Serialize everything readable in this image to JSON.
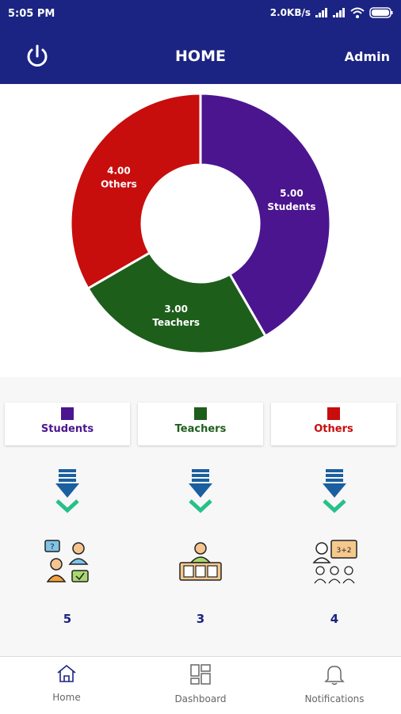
{
  "status_bar": {
    "time": "5:05 PM",
    "speed": "2.0KB/s"
  },
  "app_bar": {
    "title": "HOME",
    "user": "Admin"
  },
  "chart_data": {
    "type": "pie",
    "style": "donut",
    "slices": [
      {
        "value": "5.00",
        "label": "Students",
        "color": "#4b1590"
      },
      {
        "value": "3.00",
        "label": "Teachers",
        "color": "#1e5e1b"
      },
      {
        "value": "4.00",
        "label": "Others",
        "color": "#c80d0d"
      }
    ]
  },
  "categories": [
    {
      "label": "Students",
      "color": "#4b1590",
      "count": "5",
      "icon": "students-discussion-icon"
    },
    {
      "label": "Teachers",
      "color": "#1e5e1b",
      "count": "3",
      "icon": "teacher-desk-icon"
    },
    {
      "label": "Others",
      "color": "#c80d0d",
      "count": "4",
      "icon": "classroom-board-icon"
    }
  ],
  "bottom_nav": [
    {
      "label": "Home",
      "icon": "home-icon",
      "active": true
    },
    {
      "label": "Dashboard",
      "icon": "dashboard-icon",
      "active": false
    },
    {
      "label": "Notifications",
      "icon": "bell-icon",
      "active": false
    }
  ]
}
